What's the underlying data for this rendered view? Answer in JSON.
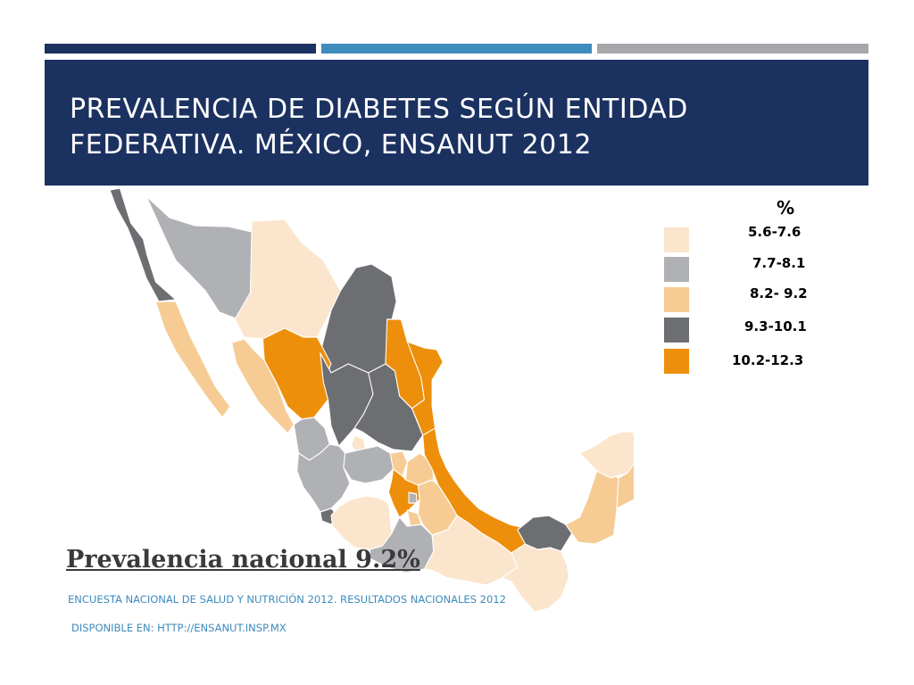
{
  "title": "PREVALENCIA DE DIABETES SEGÚN ENTIDAD FEDERATIVA. MÉXICO, ENSANUT 2012",
  "legend": {
    "title": "%",
    "items": [
      {
        "label": "5.6-7.6",
        "color": "#fbe5cd"
      },
      {
        "label": "7.7-8.1",
        "color": "#b0b1b5"
      },
      {
        "label": "8.2- 9.2",
        "color": "#f6cc94"
      },
      {
        "label": "9.3-10.1",
        "color": "#6d6e71"
      },
      {
        "label": "10.2-12.3",
        "color": "#ee8f0b"
      }
    ]
  },
  "national_prevalence": "Prevalencia nacional 9.2%",
  "source": "ENCUESTA NACIONAL DE SALUD Y NUTRICIÓN 2012. RESULTADOS NACIONALES 2012",
  "available": "DISPONIBLE EN: HTTP://ENSANUT.INSP.MX",
  "states": [
    {
      "name": "Baja California",
      "class": 3
    },
    {
      "name": "Baja California Sur",
      "class": 2
    },
    {
      "name": "Sonora",
      "class": 1
    },
    {
      "name": "Chihuahua",
      "class": 0
    },
    {
      "name": "Coahuila",
      "class": 3
    },
    {
      "name": "Nuevo León",
      "class": 4
    },
    {
      "name": "Tamaulipas",
      "class": 4
    },
    {
      "name": "Sinaloa",
      "class": 2
    },
    {
      "name": "Durango",
      "class": 4
    },
    {
      "name": "Zacatecas",
      "class": 3
    },
    {
      "name": "San Luis Potosí",
      "class": 3
    },
    {
      "name": "Nayarit",
      "class": 1
    },
    {
      "name": "Aguascalientes",
      "class": 0
    },
    {
      "name": "Jalisco",
      "class": 1
    },
    {
      "name": "Guanajuato",
      "class": 1
    },
    {
      "name": "Querétaro",
      "class": 2
    },
    {
      "name": "Hidalgo",
      "class": 2
    },
    {
      "name": "Veracruz",
      "class": 4
    },
    {
      "name": "Colima",
      "class": 3
    },
    {
      "name": "Michoacán",
      "class": 0
    },
    {
      "name": "Estado de México",
      "class": 4
    },
    {
      "name": "Ciudad de México",
      "class": 1
    },
    {
      "name": "Tlaxcala",
      "class": 2
    },
    {
      "name": "Puebla",
      "class": 2
    },
    {
      "name": "Morelos",
      "class": 2
    },
    {
      "name": "Guerrero",
      "class": 1
    },
    {
      "name": "Oaxaca",
      "class": 0
    },
    {
      "name": "Chiapas",
      "class": 0
    },
    {
      "name": "Tabasco",
      "class": 3
    },
    {
      "name": "Campeche",
      "class": 2
    },
    {
      "name": "Yucatán",
      "class": 0
    },
    {
      "name": "Quintana Roo",
      "class": 2
    }
  ]
}
